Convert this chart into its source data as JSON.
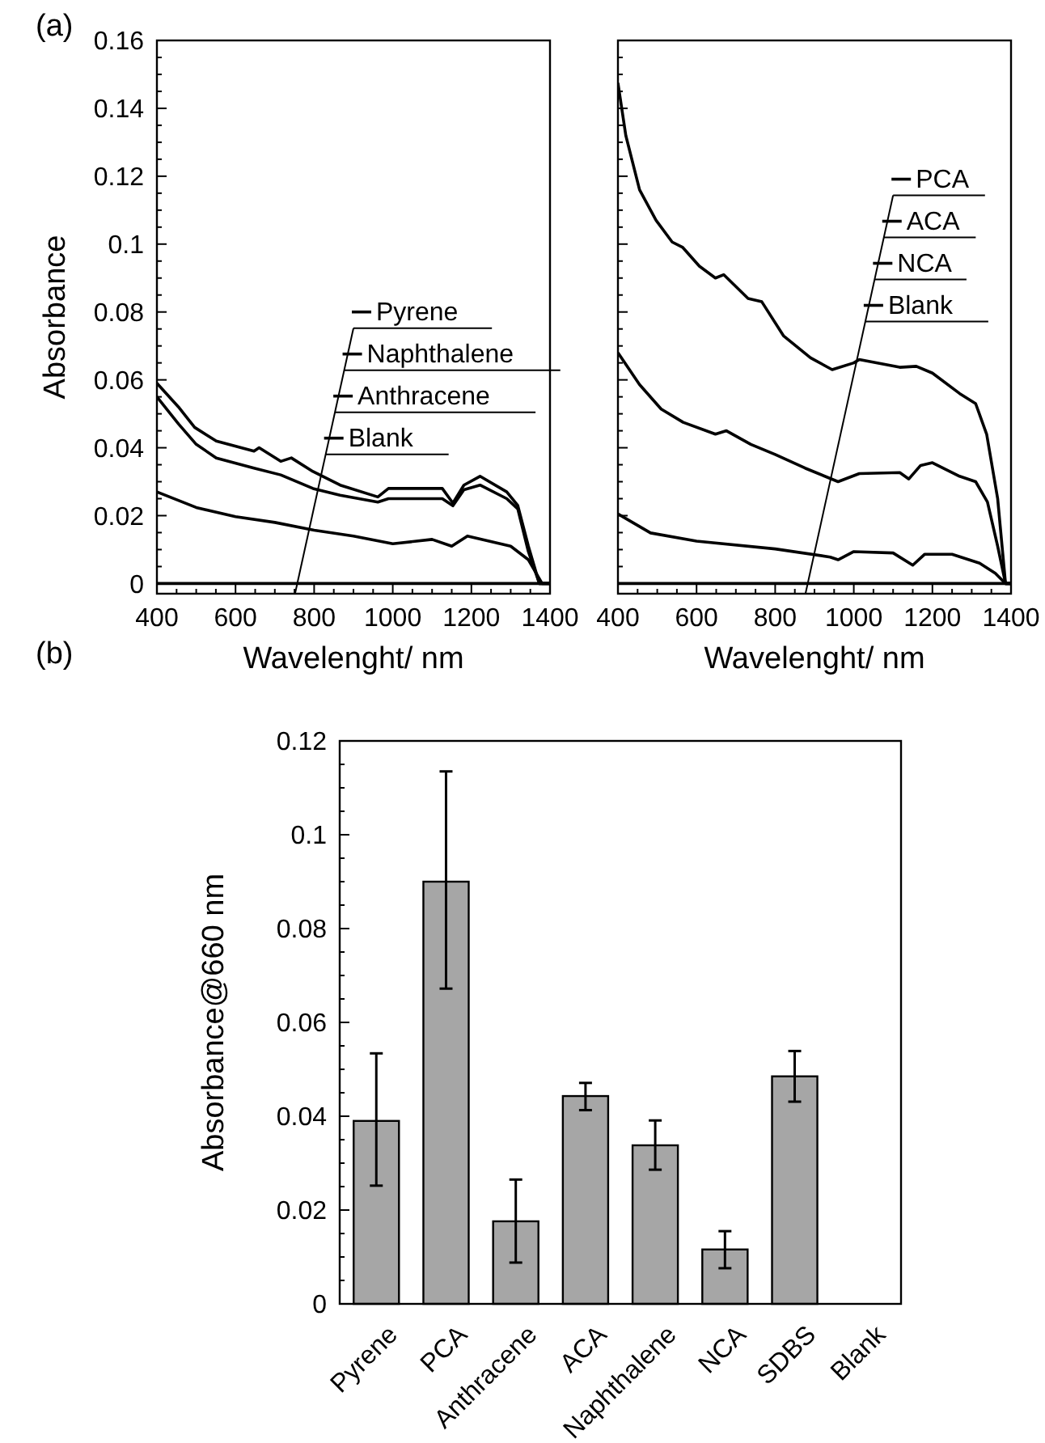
{
  "chart_data": [
    {
      "type": "line",
      "xlabel": "Wavelenght/ nm",
      "ylabel": "Absorbance",
      "annotations": [
        "(a)"
      ],
      "legend": "right",
      "xlim": [
        400,
        1400
      ],
      "ylim": [
        -0.003,
        0.16
      ],
      "xticks": [
        400,
        {
          "value": 450,
          "label": null
        },
        {
          "value": 500,
          "label": null
        },
        {
          "value": 550,
          "label": null
        },
        600,
        {
          "value": 650,
          "label": null
        },
        {
          "value": 700,
          "label": null
        },
        {
          "value": 750,
          "label": null
        },
        800,
        {
          "value": 850,
          "label": null
        },
        {
          "value": 900,
          "label": null
        },
        {
          "value": 950,
          "label": null
        },
        1000,
        {
          "value": 1050,
          "label": null
        },
        {
          "value": 1100,
          "label": null
        },
        {
          "value": 1150,
          "label": null
        },
        1200,
        {
          "value": 1250,
          "label": null
        },
        {
          "value": 1300,
          "label": null
        },
        {
          "value": 1350,
          "label": null
        },
        1400
      ],
      "yticks": [
        0,
        {
          "value": 0.005,
          "label": null
        },
        {
          "value": 0.01,
          "label": null
        },
        {
          "value": 0.015,
          "label": null
        },
        0.02,
        {
          "value": 0.025,
          "label": null
        },
        {
          "value": 0.03,
          "label": null
        },
        {
          "value": 0.035,
          "label": null
        },
        0.04,
        {
          "value": 0.045,
          "label": null
        },
        {
          "value": 0.05,
          "label": null
        },
        {
          "value": 0.055,
          "label": null
        },
        0.06,
        {
          "value": 0.065,
          "label": null
        },
        {
          "value": 0.07,
          "label": null
        },
        {
          "value": 0.075,
          "label": null
        },
        0.08,
        {
          "value": 0.085,
          "label": null
        },
        {
          "value": 0.09,
          "label": null
        },
        {
          "value": 0.095,
          "label": null
        },
        0.1,
        {
          "value": 0.105,
          "label": null
        },
        {
          "value": 0.11,
          "label": null
        },
        {
          "value": 0.115,
          "label": null
        },
        0.12,
        {
          "value": 0.125,
          "label": null
        },
        {
          "value": 0.13,
          "label": null
        },
        {
          "value": 0.135,
          "label": null
        },
        0.14,
        {
          "value": 0.145,
          "label": null
        },
        {
          "value": 0.15,
          "label": null
        },
        {
          "value": 0.155,
          "label": null
        },
        0.16
      ],
      "series": [
        {
          "name": "Pyrene",
          "color": "#000000",
          "x": [
            400,
            455,
            496,
            551,
            647,
            660,
            715,
            742,
            797,
            866,
            962,
            989,
            1126,
            1153,
            1181,
            1222,
            1290,
            1318,
            1345,
            1373,
            1400
          ],
          "values": [
            0.059,
            0.052,
            0.046,
            0.042,
            0.039,
            0.04,
            0.036,
            0.037,
            0.033,
            0.029,
            0.0255,
            0.028,
            0.028,
            0.0237,
            0.029,
            0.0316,
            0.027,
            0.023,
            0.011,
            0,
            0
          ]
        },
        {
          "name": "Naphthalene",
          "color": "#000000",
          "x": [
            400,
            455,
            500,
            551,
            647,
            715,
            797,
            866,
            962,
            989,
            1126,
            1153,
            1181,
            1222,
            1290,
            1318,
            1345,
            1373,
            1400
          ],
          "values": [
            0.055,
            0.047,
            0.041,
            0.037,
            0.034,
            0.032,
            0.028,
            0.026,
            0.024,
            0.025,
            0.025,
            0.0229,
            0.0276,
            0.029,
            0.025,
            0.022,
            0.0094,
            0,
            0
          ]
        },
        {
          "name": "Anthracene",
          "color": "#000000",
          "x": [
            400,
            500,
            600,
            700,
            800,
            900,
            1000,
            1100,
            1150,
            1190,
            1300,
            1345,
            1380,
            1400
          ],
          "values": [
            0.027,
            0.0224,
            0.0197,
            0.018,
            0.0157,
            0.014,
            0.0117,
            0.013,
            0.011,
            0.014,
            0.011,
            0.007,
            0,
            0
          ]
        },
        {
          "name": "Blank",
          "color": "#000000",
          "x": [
            400,
            1400
          ],
          "values": [
            0,
            0
          ]
        }
      ]
    },
    {
      "type": "line",
      "xlabel": "Wavelenght/ nm",
      "legend": "top right",
      "tick_labels": "x",
      "xlim": [
        400,
        1400
      ],
      "ylim": [
        -0.003,
        0.16
      ],
      "xticks": [
        400,
        {
          "value": 450,
          "label": null
        },
        {
          "value": 500,
          "label": null
        },
        {
          "value": 550,
          "label": null
        },
        600,
        {
          "value": 650,
          "label": null
        },
        {
          "value": 700,
          "label": null
        },
        {
          "value": 750,
          "label": null
        },
        800,
        {
          "value": 850,
          "label": null
        },
        {
          "value": 900,
          "label": null
        },
        {
          "value": 950,
          "label": null
        },
        1000,
        {
          "value": 1050,
          "label": null
        },
        {
          "value": 1100,
          "label": null
        },
        {
          "value": 1150,
          "label": null
        },
        1200,
        {
          "value": 1250,
          "label": null
        },
        {
          "value": 1300,
          "label": null
        },
        {
          "value": 1350,
          "label": null
        },
        1400
      ],
      "yticks": [
        0,
        {
          "value": 0.005,
          "label": null
        },
        {
          "value": 0.01,
          "label": null
        },
        {
          "value": 0.015,
          "label": null
        },
        0.02,
        {
          "value": 0.025,
          "label": null
        },
        {
          "value": 0.03,
          "label": null
        },
        {
          "value": 0.035,
          "label": null
        },
        0.04,
        {
          "value": 0.045,
          "label": null
        },
        {
          "value": 0.05,
          "label": null
        },
        {
          "value": 0.055,
          "label": null
        },
        0.06,
        {
          "value": 0.065,
          "label": null
        },
        {
          "value": 0.07,
          "label": null
        },
        {
          "value": 0.075,
          "label": null
        },
        0.08,
        {
          "value": 0.085,
          "label": null
        },
        {
          "value": 0.09,
          "label": null
        },
        {
          "value": 0.095,
          "label": null
        },
        0.1,
        {
          "value": 0.105,
          "label": null
        },
        {
          "value": 0.11,
          "label": null
        },
        {
          "value": 0.115,
          "label": null
        },
        0.12,
        {
          "value": 0.125,
          "label": null
        },
        {
          "value": 0.13,
          "label": null
        },
        {
          "value": 0.135,
          "label": null
        },
        0.14,
        {
          "value": 0.145,
          "label": null
        },
        {
          "value": 0.15,
          "label": null
        },
        {
          "value": 0.155,
          "label": null
        },
        0.16
      ],
      "series": [
        {
          "name": "PCA",
          "color": "#000000",
          "x": [
            400,
            420,
            455,
            497,
            538,
            565,
            607,
            648,
            669,
            731,
            766,
            821,
            890,
            945,
            1000,
            1014,
            1117,
            1159,
            1200,
            1269,
            1310,
            1338,
            1366,
            1386,
            1400
          ],
          "values": [
            0.1475,
            0.132,
            0.116,
            0.107,
            0.1006,
            0.099,
            0.0935,
            0.09,
            0.091,
            0.084,
            0.083,
            0.073,
            0.0665,
            0.063,
            0.065,
            0.066,
            0.0637,
            0.064,
            0.062,
            0.056,
            0.053,
            0.044,
            0.025,
            0,
            0
          ]
        },
        {
          "name": "ACA",
          "color": "#000000",
          "x": [
            400,
            455,
            510,
            566,
            648,
            676,
            738,
            800,
            876,
            960,
            1014,
            1117,
            1140,
            1170,
            1200,
            1269,
            1310,
            1340,
            1366,
            1386,
            1400
          ],
          "values": [
            0.068,
            0.0586,
            0.0514,
            0.0475,
            0.044,
            0.045,
            0.041,
            0.038,
            0.034,
            0.03,
            0.0324,
            0.0327,
            0.0308,
            0.0348,
            0.0356,
            0.0316,
            0.03,
            0.024,
            0.011,
            0,
            0
          ]
        },
        {
          "name": "NCA",
          "color": "#000000",
          "x": [
            400,
            483,
            600,
            800,
            940,
            960,
            1000,
            1100,
            1150,
            1180,
            1250,
            1320,
            1360,
            1386,
            1400
          ],
          "values": [
            0.0205,
            0.0149,
            0.0125,
            0.0102,
            0.0078,
            0.007,
            0.0094,
            0.009,
            0.0054,
            0.0086,
            0.0086,
            0.006,
            0.003,
            0,
            0
          ]
        },
        {
          "name": "Blank",
          "color": "#000000",
          "x": [
            400,
            1400
          ],
          "values": [
            0,
            0
          ]
        }
      ]
    },
    {
      "type": "bar",
      "ylabel": "Absorbance@660 nm",
      "annotations": [
        "(b)"
      ],
      "categories": [
        "Pyrene",
        "PCA",
        "Anthracene",
        "ACA",
        "Naphthalene",
        "NCA",
        "SDBS",
        "Blank"
      ],
      "values": [
        0.039,
        0.09,
        0.0176,
        0.0443,
        0.0338,
        0.0116,
        0.0485,
        0
      ],
      "errors": [
        [
          0.0252,
          0.0534
        ],
        [
          0.0672,
          0.1135
        ],
        [
          0.0088,
          0.0265
        ],
        [
          0.0413,
          0.0471
        ],
        [
          0.0286,
          0.0391
        ],
        [
          0.0076,
          0.0155
        ],
        [
          0.0431,
          0.0539
        ],
        null
      ],
      "color": "#a6a6a6",
      "ylim": [
        0,
        0.12
      ],
      "yticks": [
        0,
        {
          "value": 0.005,
          "label": null
        },
        {
          "value": 0.01,
          "label": null
        },
        {
          "value": 0.015,
          "label": null
        },
        0.02,
        {
          "value": 0.025,
          "label": null
        },
        {
          "value": 0.03,
          "label": null
        },
        {
          "value": 0.035,
          "label": null
        },
        0.04,
        {
          "value": 0.045,
          "label": null
        },
        {
          "value": 0.05,
          "label": null
        },
        {
          "value": 0.055,
          "label": null
        },
        0.06,
        {
          "value": 0.065,
          "label": null
        },
        {
          "value": 0.07,
          "label": null
        },
        {
          "value": 0.075,
          "label": null
        },
        0.08,
        {
          "value": 0.085,
          "label": null
        },
        {
          "value": 0.09,
          "label": null
        },
        {
          "value": 0.095,
          "label": null
        },
        0.1,
        {
          "value": 0.105,
          "label": null
        },
        {
          "value": 0.11,
          "label": null
        },
        {
          "value": 0.115,
          "label": null
        },
        0.12
      ]
    }
  ]
}
